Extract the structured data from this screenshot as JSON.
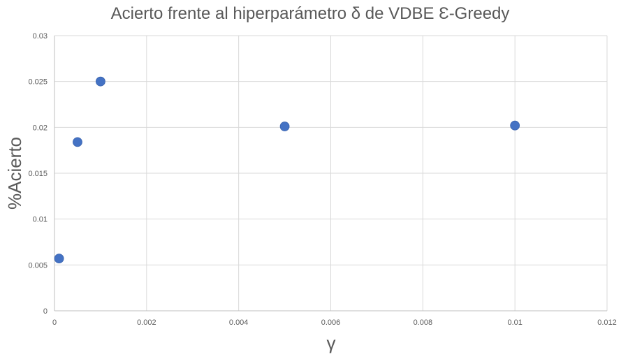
{
  "chart_data": {
    "type": "scatter",
    "title": "Acierto frente al hiperparámetro δ de VDBE Ɛ-Greedy",
    "xlabel": "γ",
    "ylabel": "%Acierto",
    "xlim": [
      0,
      0.012
    ],
    "ylim": [
      0,
      0.03
    ],
    "x_ticks": [
      "0",
      "0.002",
      "0.004",
      "0.006",
      "0.008",
      "0.01",
      "0.012"
    ],
    "y_ticks": [
      "0",
      "0.005",
      "0.01",
      "0.015",
      "0.02",
      "0.025",
      "0.03"
    ],
    "grid": true,
    "legend": "none",
    "marker_color": "#4472c4",
    "points": [
      {
        "x": 0.0001,
        "y": 0.0057
      },
      {
        "x": 0.0005,
        "y": 0.0184
      },
      {
        "x": 0.001,
        "y": 0.025
      },
      {
        "x": 0.005,
        "y": 0.0201
      },
      {
        "x": 0.01,
        "y": 0.0202
      }
    ]
  }
}
